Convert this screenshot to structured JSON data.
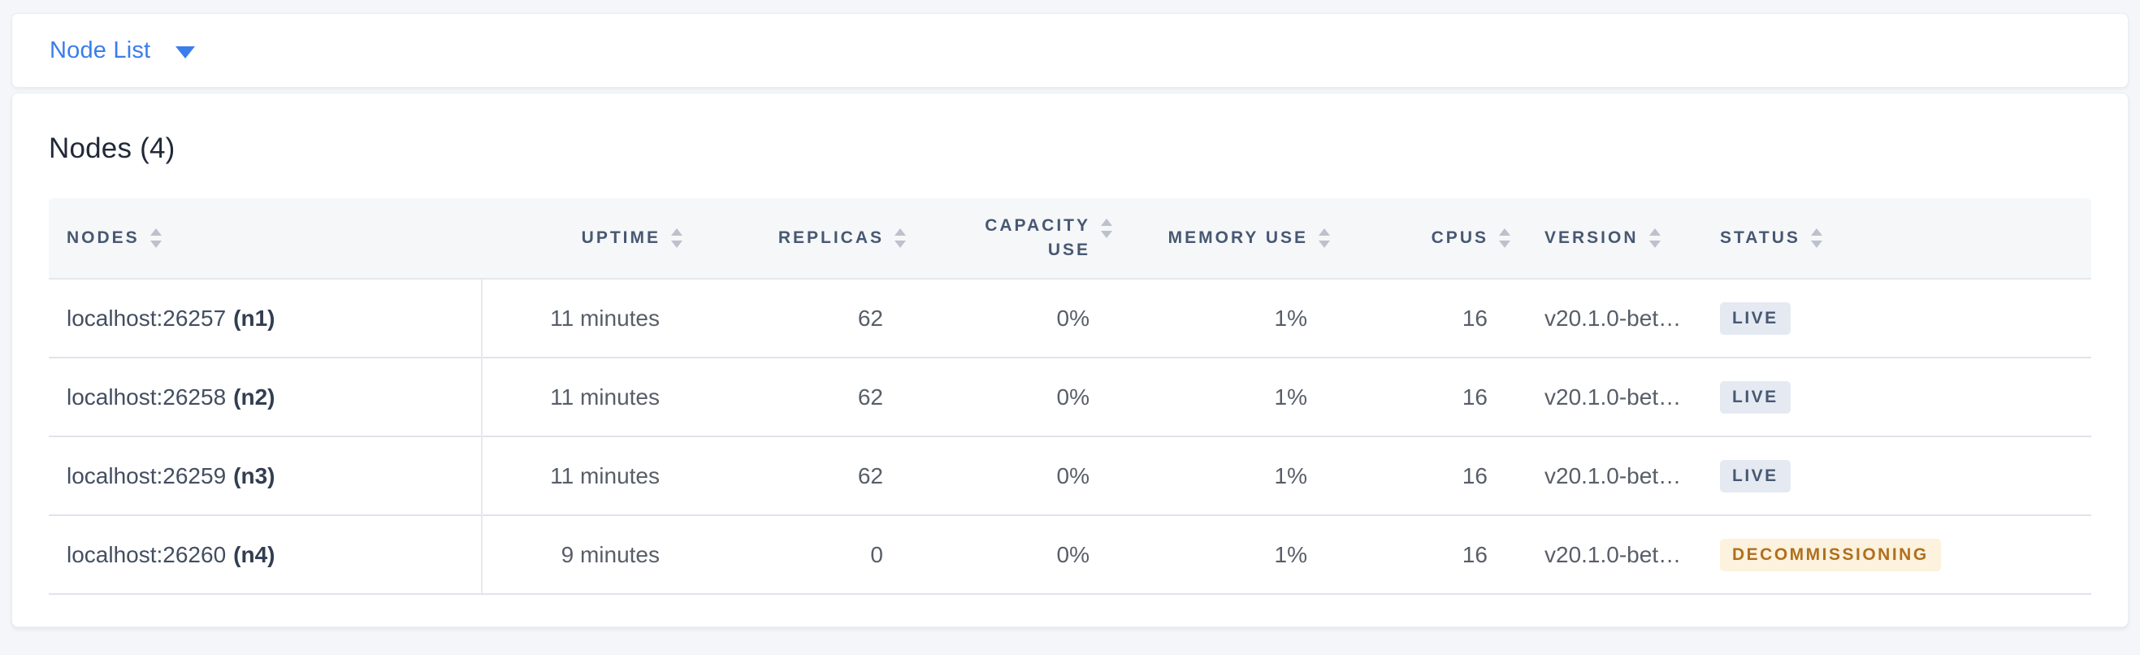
{
  "view_selector": {
    "label": "Node List",
    "caret_icon": "caret-down-icon",
    "accent_color": "#3b7dec"
  },
  "card": {
    "title": "Nodes (4)"
  },
  "table": {
    "sort_icon": "sort-arrows-icon",
    "columns": [
      {
        "label": "NODES"
      },
      {
        "label": "UPTIME"
      },
      {
        "label": "REPLICAS"
      },
      {
        "label": "CAPACITY USE"
      },
      {
        "label": "MEMORY USE"
      },
      {
        "label": "CPUS"
      },
      {
        "label": "VERSION"
      },
      {
        "label": "STATUS"
      }
    ],
    "rows": [
      {
        "address": "localhost:26257",
        "node_id": "(n1)",
        "uptime": "11 minutes",
        "replicas": "62",
        "capacity_use": "0%",
        "memory_use": "1%",
        "cpus": "16",
        "version": "v20.1.0-bet…",
        "status": "LIVE",
        "status_class": "badge live"
      },
      {
        "address": "localhost:26258",
        "node_id": "(n2)",
        "uptime": "11 minutes",
        "replicas": "62",
        "capacity_use": "0%",
        "memory_use": "1%",
        "cpus": "16",
        "version": "v20.1.0-bet…",
        "status": "LIVE",
        "status_class": "badge live"
      },
      {
        "address": "localhost:26259",
        "node_id": "(n3)",
        "uptime": "11 minutes",
        "replicas": "62",
        "capacity_use": "0%",
        "memory_use": "1%",
        "cpus": "16",
        "version": "v20.1.0-bet…",
        "status": "LIVE",
        "status_class": "badge live"
      },
      {
        "address": "localhost:26260",
        "node_id": "(n4)",
        "uptime": "9 minutes",
        "replicas": "0",
        "capacity_use": "0%",
        "memory_use": "1%",
        "cpus": "16",
        "version": "v20.1.0-bet…",
        "status": "DECOMMISSIONING",
        "status_class": "badge warn"
      }
    ],
    "status_colors": {
      "live_background": "#e5eaf2",
      "live_text": "#475873",
      "decommissioning_background": "#fcf2dd",
      "decommissioning_text": "#b06f1e"
    }
  }
}
